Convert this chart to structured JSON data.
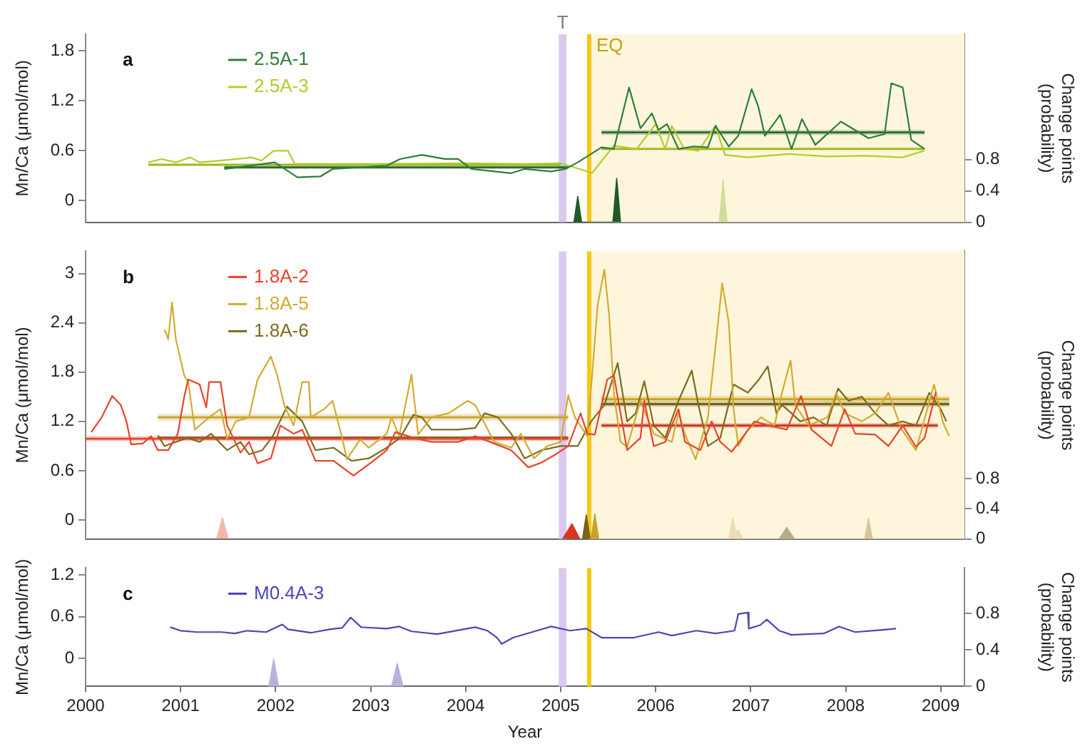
{
  "chart_data": [
    {
      "type": "line",
      "title": "a",
      "ylabel": "Mn/Ca (μmol/mol)",
      "y2label": "Change points (probability)",
      "xlim": [
        2000,
        2009.25
      ],
      "xticks": [
        2000,
        2001,
        2002,
        2003,
        2004,
        2005,
        2006,
        2007,
        2008,
        2009
      ],
      "ylim": [
        -0.26,
        2.0
      ],
      "yticks": [
        0,
        0.6,
        1.2,
        1.8
      ],
      "y2lim": [
        0,
        2.4
      ],
      "y2ticks": [
        0,
        0.4,
        0.8
      ],
      "tick_labels": "y",
      "legend": "top left",
      "marker": "none",
      "bands": [
        {
          "axis": "x",
          "from": 2004.98,
          "to": 2005.06,
          "label": "T",
          "color": "#dcc8ee"
        },
        {
          "axis": "x",
          "from": 2005.3,
          "to": 2009.25,
          "color": "#fdf6dc"
        }
      ],
      "ref_lines": [
        {
          "axis": "x",
          "value": 2005.3,
          "label": "EQ",
          "color": "#f5c816"
        }
      ],
      "series": [
        {
          "name": "2.5A-1",
          "color": "#2e7d3a",
          "x": [
            2001.46,
            2001.6,
            2001.99,
            2002.23,
            2002.47,
            2002.6,
            2003.17,
            2003.31,
            2003.54,
            2003.78,
            2003.92,
            2004.06,
            2004.48,
            2004.62,
            2004.9,
            2005.05,
            2005.18,
            2005.43,
            2005.56,
            2005.72,
            2005.84,
            2005.96,
            2006.03,
            2006.12,
            2006.24,
            2006.4,
            2006.55,
            2006.63,
            2006.77,
            2006.87,
            2007.01,
            2007.08,
            2007.15,
            2007.31,
            2007.43,
            2007.54,
            2007.68,
            2007.95,
            2008.24,
            2008.41,
            2008.48,
            2008.6,
            2008.69,
            2008.83
          ],
          "values": [
            0.38,
            0.4,
            0.46,
            0.28,
            0.29,
            0.38,
            0.42,
            0.5,
            0.55,
            0.5,
            0.5,
            0.38,
            0.33,
            0.38,
            0.35,
            0.38,
            0.46,
            0.64,
            0.62,
            1.36,
            0.87,
            1.05,
            0.85,
            0.92,
            0.62,
            0.65,
            0.64,
            0.9,
            0.65,
            0.78,
            1.34,
            1.13,
            0.78,
            1.03,
            0.62,
            0.98,
            0.67,
            0.95,
            0.75,
            0.8,
            1.41,
            1.36,
            0.73,
            0.62
          ]
        },
        {
          "name": "2.5A-3",
          "color": "#b5cc2c",
          "x": [
            2000.66,
            2000.8,
            2000.95,
            2001.1,
            2001.2,
            2001.6,
            2001.75,
            2001.85,
            2001.98,
            2002.13,
            2002.2,
            2003.0,
            2004.0,
            2004.6,
            2005.0,
            2005.2,
            2005.33,
            2005.56,
            2005.8,
            2006.0,
            2006.1,
            2006.17,
            2006.3,
            2006.45,
            2006.63,
            2006.73,
            2006.97,
            2007.4,
            2007.8,
            2008.2,
            2008.6,
            2008.83
          ],
          "values": [
            0.46,
            0.5,
            0.46,
            0.52,
            0.46,
            0.5,
            0.52,
            0.48,
            0.6,
            0.6,
            0.44,
            0.44,
            0.45,
            0.44,
            0.45,
            0.38,
            0.33,
            0.66,
            0.62,
            0.92,
            0.62,
            0.9,
            0.62,
            0.6,
            0.9,
            0.55,
            0.52,
            0.56,
            0.53,
            0.54,
            0.52,
            0.6
          ]
        },
        {
          "type": "line",
          "color": "#2b6a34",
          "x": [
            2001.46,
            2005.08
          ],
          "values": [
            0.4,
            0.4
          ],
          "lower": [
            0.38,
            0.38
          ],
          "upper": [
            0.42,
            0.42
          ]
        },
        {
          "type": "line",
          "color": "#9fb81f",
          "x": [
            2000.66,
            2005.0
          ],
          "values": [
            0.43,
            0.43
          ],
          "lower": [
            0.42,
            0.42
          ],
          "upper": [
            0.45,
            0.45
          ]
        },
        {
          "type": "line",
          "color": "#2b6a34",
          "x": [
            2005.43,
            2008.83
          ],
          "values": [
            0.82,
            0.82
          ],
          "lower": [
            0.79,
            0.79
          ],
          "upper": [
            0.85,
            0.85
          ]
        },
        {
          "type": "line",
          "color": "#9fb81f",
          "x": [
            2005.43,
            2008.83
          ],
          "values": [
            0.62,
            0.62
          ],
          "lower": [
            0.61,
            0.61
          ],
          "upper": [
            0.64,
            0.64
          ]
        },
        {
          "type": "area",
          "axis": "y2",
          "color": "#1f5a28",
          "x": [
            2005.14,
            2005.18,
            2005.22,
            2005.55,
            2005.59,
            2005.63
          ],
          "values": [
            0,
            0.33,
            0,
            0,
            0.56,
            0
          ]
        },
        {
          "type": "area",
          "axis": "y2",
          "color": "#d2dd9a",
          "x": [
            2006.67,
            2006.71,
            2006.75
          ],
          "values": [
            0,
            0.54,
            0
          ]
        }
      ]
    },
    {
      "type": "line",
      "title": "b",
      "ylabel": "Mn/Ca (μmol/mol)",
      "y2label": "Change points (probability)",
      "xlim": [
        2000,
        2009.25
      ],
      "xticks": [
        2000,
        2001,
        2002,
        2003,
        2004,
        2005,
        2006,
        2007,
        2008,
        2009
      ],
      "ylim": [
        -0.23,
        3.27
      ],
      "yticks": [
        0,
        0.6,
        1.2,
        1.8,
        2.4,
        3
      ],
      "y2lim": [
        0,
        3.83
      ],
      "y2ticks": [
        0,
        0.4,
        0.8
      ],
      "tick_labels": "y",
      "legend": "top left",
      "marker": "none",
      "bands": [
        {
          "axis": "x",
          "from": 2004.98,
          "to": 2005.06,
          "color": "#dcc8ee"
        },
        {
          "axis": "x",
          "from": 2005.3,
          "to": 2009.25,
          "color": "#fdf6dc"
        }
      ],
      "ref_lines": [
        {
          "axis": "x",
          "value": 2005.3,
          "color": "#f5c816"
        }
      ],
      "series": [
        {
          "name": "1.8A-2",
          "color": "#e8432a",
          "x": [
            2000.06,
            2000.17,
            2000.28,
            2000.37,
            2000.43,
            2000.48,
            2000.6,
            2000.69,
            2000.76,
            2000.87,
            2000.97,
            2001.04,
            2001.08,
            2001.2,
            2001.27,
            2001.3,
            2001.42,
            2001.49,
            2001.63,
            2001.72,
            2001.81,
            2001.95,
            2002.05,
            2002.19,
            2002.28,
            2002.42,
            2002.61,
            2002.82,
            2003.03,
            2003.17,
            2003.26,
            2003.45,
            2003.64,
            2003.92,
            2004.1,
            2004.48,
            2004.66,
            2004.8,
            2004.95,
            2005.08,
            2005.21,
            2005.28,
            2005.36,
            2005.49,
            2005.56,
            2005.63,
            2005.7,
            2005.84,
            2005.88,
            2005.98,
            2006.1,
            2006.24,
            2006.31,
            2006.47,
            2006.59,
            2006.68,
            2006.8,
            2006.91,
            2007.04,
            2007.19,
            2007.38,
            2007.53,
            2007.64,
            2007.85,
            2007.99,
            2008.1,
            2008.31,
            2008.45,
            2008.6,
            2008.74,
            2008.83,
            2008.95
          ],
          "values": [
            1.07,
            1.25,
            1.51,
            1.4,
            1.2,
            0.92,
            0.93,
            1.02,
            0.85,
            0.85,
            1.05,
            1.51,
            1.71,
            1.65,
            1.37,
            1.68,
            1.68,
            1.15,
            0.82,
            0.95,
            0.69,
            0.75,
            1.15,
            1.05,
            1.1,
            0.72,
            0.72,
            0.54,
            0.72,
            0.85,
            1.07,
            1.0,
            0.95,
            0.95,
            1.02,
            0.85,
            0.64,
            0.7,
            0.8,
            0.9,
            1.3,
            1.05,
            1.04,
            1.71,
            1.76,
            1.3,
            0.85,
            1.0,
            1.45,
            0.9,
            0.95,
            1.35,
            0.95,
            0.85,
            1.2,
            0.95,
            0.83,
            1.0,
            1.2,
            1.15,
            1.1,
            1.51,
            1.1,
            0.9,
            1.35,
            1.05,
            1.04,
            0.9,
            1.15,
            0.89,
            1.0,
            1.56
          ]
        },
        {
          "name": "1.8A-5",
          "color": "#d4aa2e",
          "x": [
            2000.83,
            2000.87,
            2000.91,
            2000.95,
            2000.99,
            2001.04,
            2001.08,
            2001.15,
            2001.3,
            2001.42,
            2001.49,
            2001.58,
            2001.72,
            2001.81,
            2001.95,
            2002.02,
            2002.09,
            2002.19,
            2002.28,
            2002.35,
            2002.37,
            2002.51,
            2002.6,
            2002.7,
            2002.75,
            2002.89,
            2002.98,
            2003.17,
            2003.22,
            2003.3,
            2003.43,
            2003.5,
            2003.64,
            2003.82,
            2004.02,
            2004.1,
            2004.3,
            2004.48,
            2004.58,
            2004.72,
            2004.86,
            2005.0,
            2005.08,
            2005.15,
            2005.28,
            2005.39,
            2005.46,
            2005.51,
            2005.56,
            2005.63,
            2005.7,
            2005.84,
            2005.98,
            2006.17,
            2006.24,
            2006.31,
            2006.42,
            2006.55,
            2006.66,
            2006.7,
            2006.77,
            2006.82,
            2006.87,
            2006.97,
            2007.11,
            2007.25,
            2007.33,
            2007.42,
            2007.47,
            2007.61,
            2007.81,
            2007.9,
            2007.99,
            2008.17,
            2008.31,
            2008.45,
            2008.59,
            2008.74,
            2008.93,
            2009.02,
            2009.09
          ],
          "values": [
            2.32,
            2.2,
            2.65,
            2.2,
            2.0,
            1.75,
            1.68,
            1.1,
            1.25,
            1.35,
            0.99,
            1.2,
            1.25,
            1.71,
            1.99,
            1.75,
            1.4,
            1.15,
            1.68,
            1.68,
            1.25,
            1.35,
            1.45,
            1.0,
            0.74,
            0.98,
            0.88,
            1.05,
            1.25,
            1.02,
            1.77,
            1.04,
            1.25,
            1.3,
            1.45,
            1.4,
            0.95,
            0.88,
            1.05,
            0.75,
            0.9,
            0.95,
            1.52,
            1.25,
            1.02,
            2.62,
            3.05,
            2.5,
            1.55,
            0.95,
            0.89,
            1.45,
            1.05,
            0.95,
            1.3,
            1.04,
            0.74,
            1.25,
            2.44,
            2.88,
            2.4,
            1.35,
            0.9,
            1.1,
            1.25,
            1.15,
            1.55,
            1.94,
            1.4,
            1.15,
            1.25,
            1.55,
            1.3,
            1.2,
            1.3,
            1.55,
            1.1,
            0.85,
            1.65,
            1.2,
            1.02
          ]
        },
        {
          "name": "1.8A-6",
          "color": "#7d6b1e",
          "x": [
            2000.76,
            2000.83,
            2001.07,
            2001.2,
            2001.32,
            2001.49,
            2001.63,
            2001.72,
            2001.86,
            2001.97,
            2002.12,
            2002.19,
            2002.28,
            2002.42,
            2002.61,
            2002.8,
            2002.98,
            2003.17,
            2003.31,
            2003.45,
            2003.54,
            2003.64,
            2003.92,
            2004.1,
            2004.2,
            2004.34,
            2004.48,
            2004.62,
            2004.8,
            2005.0,
            2005.18,
            2005.32,
            2005.46,
            2005.6,
            2005.7,
            2005.79,
            2005.88,
            2005.98,
            2006.1,
            2006.24,
            2006.38,
            2006.45,
            2006.55,
            2006.68,
            2006.82,
            2006.97,
            2007.08,
            2007.18,
            2007.27,
            2007.33,
            2007.43,
            2007.52,
            2007.66,
            2007.8,
            2007.92,
            2008.03,
            2008.17,
            2008.31,
            2008.45,
            2008.6,
            2008.74,
            2008.88,
            2009.0,
            2009.06
          ],
          "values": [
            1.03,
            0.9,
            1.0,
            0.95,
            1.05,
            0.85,
            0.95,
            0.8,
            0.85,
            1.02,
            1.38,
            1.3,
            1.2,
            0.85,
            0.88,
            0.72,
            0.75,
            0.88,
            1.0,
            1.28,
            1.25,
            1.1,
            1.1,
            1.12,
            1.3,
            1.25,
            1.05,
            0.75,
            0.85,
            0.9,
            0.9,
            1.2,
            1.4,
            1.91,
            1.2,
            1.3,
            1.69,
            1.15,
            1.0,
            1.45,
            1.82,
            1.4,
            0.9,
            1.0,
            1.65,
            1.55,
            1.7,
            1.87,
            1.3,
            1.4,
            1.3,
            1.2,
            1.25,
            1.15,
            1.6,
            1.45,
            1.5,
            1.3,
            1.15,
            1.2,
            1.15,
            1.55,
            1.35,
            1.2
          ]
        },
        {
          "type": "line",
          "color": "#e8432a",
          "x": [
            2000.0,
            2005.08
          ],
          "values": [
            0.99,
            0.99
          ],
          "lower": [
            0.96,
            0.96
          ],
          "upper": [
            1.02,
            1.02
          ]
        },
        {
          "type": "line",
          "color": "#c9a227",
          "x": [
            2000.76,
            2005.08
          ],
          "values": [
            1.25,
            1.25
          ],
          "lower": [
            1.21,
            1.21
          ],
          "upper": [
            1.29,
            1.29
          ]
        },
        {
          "type": "line",
          "color": "#6b5a16",
          "x": [
            2000.76,
            2005.08
          ],
          "values": [
            1.0,
            1.0
          ],
          "lower": [
            0.98,
            0.98
          ],
          "upper": [
            1.02,
            1.02
          ]
        },
        {
          "type": "line",
          "color": "#c8321c",
          "x": [
            2005.43,
            2008.97
          ],
          "values": [
            1.15,
            1.15
          ],
          "lower": [
            1.12,
            1.12
          ],
          "upper": [
            1.18,
            1.18
          ]
        },
        {
          "type": "line",
          "color": "#c9a227",
          "x": [
            2005.43,
            2009.09
          ],
          "values": [
            1.47,
            1.47
          ],
          "lower": [
            1.43,
            1.43
          ],
          "upper": [
            1.51,
            1.51
          ]
        },
        {
          "type": "line",
          "color": "#6b5a16",
          "x": [
            2005.43,
            2009.09
          ],
          "values": [
            1.41,
            1.41
          ],
          "lower": [
            1.38,
            1.38
          ],
          "upper": [
            1.44,
            1.44
          ]
        },
        {
          "type": "area",
          "axis": "y2",
          "color": "#f2b8a8",
          "x": [
            2001.38,
            2001.44,
            2001.5
          ],
          "values": [
            0,
            0.28,
            0
          ]
        },
        {
          "type": "area",
          "axis": "y2",
          "color": "#d9341c",
          "x": [
            2005.02,
            2005.12,
            2005.2
          ],
          "values": [
            0,
            0.2,
            0
          ]
        },
        {
          "type": "area",
          "axis": "y2",
          "color": "#7a6418",
          "x": [
            2005.23,
            2005.27,
            2005.31
          ],
          "values": [
            0,
            0.32,
            0
          ]
        },
        {
          "type": "area",
          "axis": "y2",
          "color": "#c9a227",
          "x": [
            2005.32,
            2005.36,
            2005.4
          ],
          "values": [
            0,
            0.33,
            0
          ]
        },
        {
          "type": "area",
          "axis": "y2",
          "color": "#ecdcb4",
          "x": [
            2006.77,
            2006.81,
            2006.84,
            2006.87,
            2006.92
          ],
          "values": [
            0,
            0.28,
            0.1,
            0.12,
            0
          ]
        },
        {
          "type": "area",
          "axis": "y2",
          "color": "#b8ab8a",
          "x": [
            2007.3,
            2007.38,
            2007.46
          ],
          "values": [
            0,
            0.15,
            0
          ]
        },
        {
          "type": "area",
          "axis": "y2",
          "color": "#d6c79c",
          "x": [
            2008.2,
            2008.24,
            2008.28
          ],
          "values": [
            0,
            0.27,
            0
          ]
        }
      ]
    },
    {
      "type": "line",
      "title": "c",
      "xlabel": "Year",
      "ylabel": "Mn/Ca (μmol/mol)",
      "y2label": "Change points (probability)",
      "xlim": [
        2000,
        2009.25
      ],
      "xticks": [
        2000,
        2001,
        2002,
        2003,
        2004,
        2005,
        2006,
        2007,
        2008,
        2009
      ],
      "ylim": [
        -0.4,
        1.3
      ],
      "yticks": [
        0,
        0.6,
        1.2
      ],
      "y2lim": [
        0,
        1.3
      ],
      "y2ticks": [
        0,
        0.4,
        0.8
      ],
      "legend": "top left",
      "marker": "none",
      "bands": [
        {
          "axis": "x",
          "from": 2004.98,
          "to": 2005.06,
          "color": "#dcc8ee"
        }
      ],
      "ref_lines": [
        {
          "axis": "x",
          "value": 2005.3,
          "color": "#f5c816"
        }
      ],
      "series": [
        {
          "name": "M0.4A-3",
          "color": "#4a46b8",
          "x": [
            2000.89,
            2001.0,
            2001.17,
            2001.43,
            2001.57,
            2001.7,
            2001.9,
            2002.07,
            2002.13,
            2002.37,
            2002.57,
            2002.7,
            2002.79,
            2002.9,
            2003.17,
            2003.3,
            2003.43,
            2003.7,
            2004.1,
            2004.23,
            2004.33,
            2004.38,
            2004.5,
            2004.7,
            2004.9,
            2005.1,
            2005.27,
            2005.43,
            2005.77,
            2006.03,
            2006.17,
            2006.43,
            2006.63,
            2006.83,
            2006.87,
            2006.97,
            2006.98,
            2007.1,
            2007.17,
            2007.3,
            2007.43,
            2007.77,
            2007.93,
            2008.1,
            2008.37,
            2008.53
          ],
          "values": [
            0.45,
            0.4,
            0.38,
            0.38,
            0.36,
            0.4,
            0.38,
            0.49,
            0.42,
            0.37,
            0.42,
            0.44,
            0.59,
            0.45,
            0.43,
            0.46,
            0.39,
            0.35,
            0.45,
            0.4,
            0.3,
            0.21,
            0.3,
            0.38,
            0.46,
            0.4,
            0.43,
            0.3,
            0.3,
            0.38,
            0.33,
            0.4,
            0.36,
            0.4,
            0.64,
            0.66,
            0.43,
            0.48,
            0.56,
            0.4,
            0.34,
            0.36,
            0.46,
            0.38,
            0.41,
            0.43
          ]
        },
        {
          "type": "area",
          "axis": "y2",
          "color": "#b8b2dc",
          "x": [
            2001.93,
            2001.98,
            2002.03,
            2003.22,
            2003.28,
            2003.34
          ],
          "values": [
            0,
            0.3,
            0,
            0,
            0.25,
            0
          ]
        }
      ]
    }
  ]
}
